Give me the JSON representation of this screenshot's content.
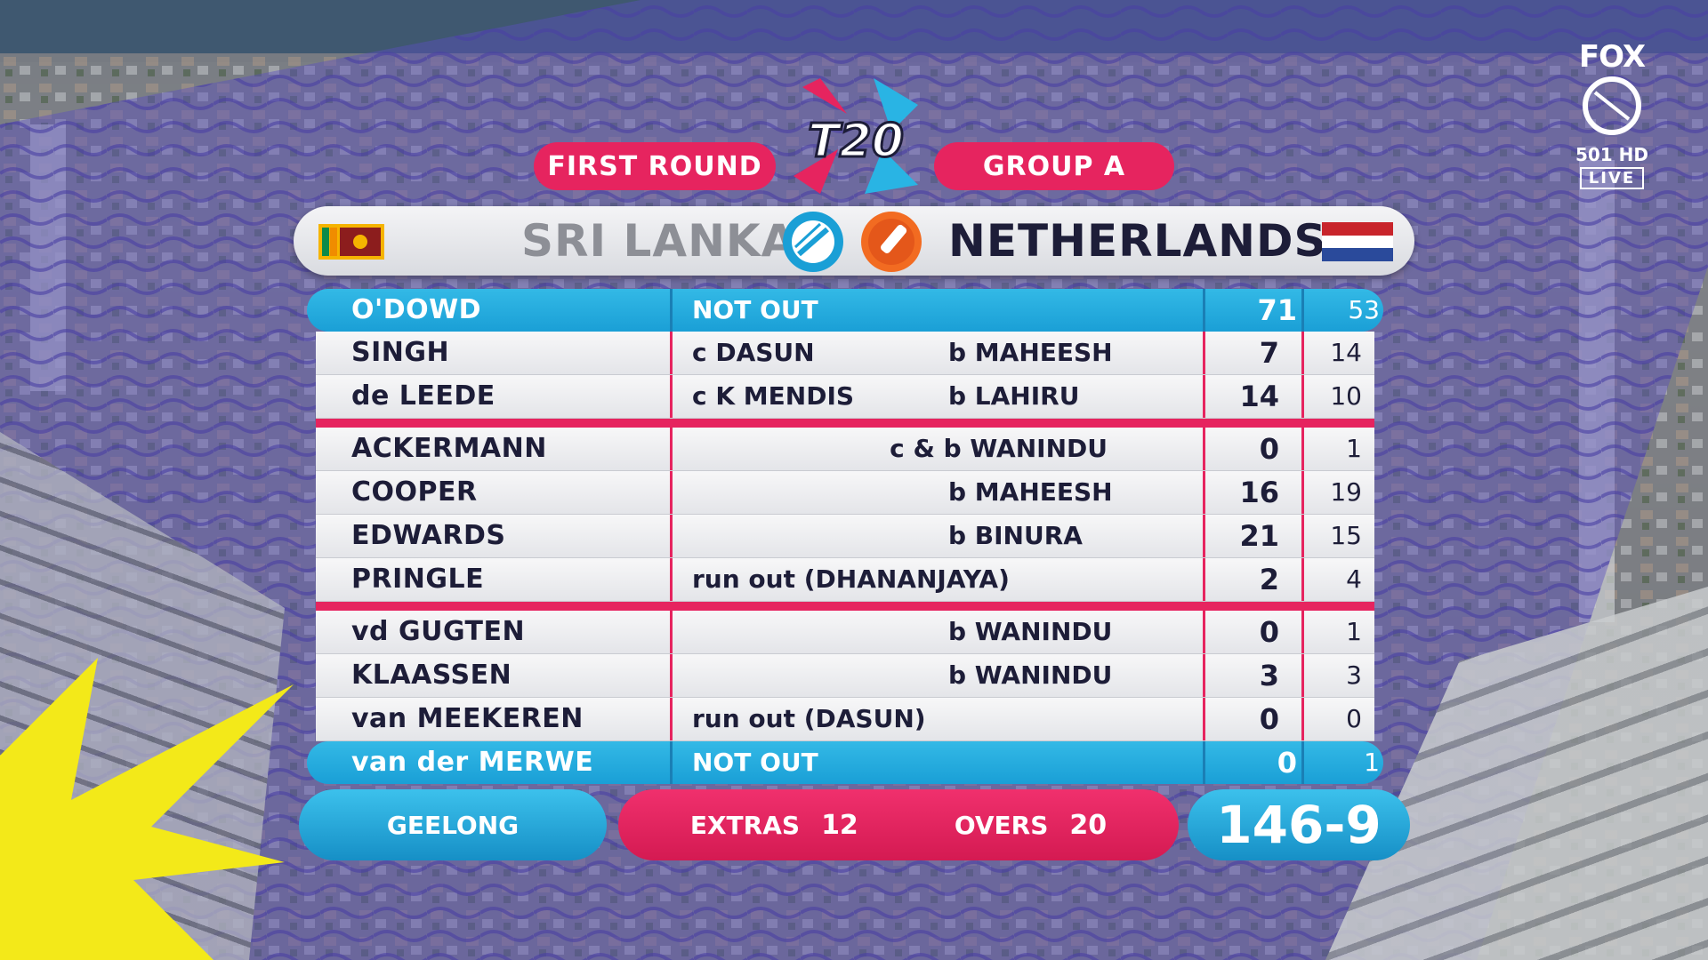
{
  "header": {
    "round": "FIRST ROUND",
    "group": "GROUP A",
    "tournament_logo": "T20"
  },
  "teams": {
    "left": {
      "name": "SRI LANKA",
      "flag": "sri-lanka-flag-icon"
    },
    "right": {
      "name": "NETHERLANDS",
      "flag": "netherlands-flag-icon"
    }
  },
  "batting": [
    {
      "name": "O'DOWD",
      "how": "NOT OUT",
      "bowler": "",
      "runs": "71",
      "balls": "53",
      "highlight": true
    },
    {
      "name": "SINGH",
      "how": "c DASUN",
      "bowler": "b MAHEESH",
      "runs": "7",
      "balls": "14"
    },
    {
      "name": "de LEEDE",
      "how": "c K MENDIS",
      "bowler": "b LAHIRU",
      "runs": "14",
      "balls": "10"
    },
    {
      "name": "ACKERMANN",
      "how": "",
      "bowler": "c & b WANINDU",
      "runs": "0",
      "balls": "1"
    },
    {
      "name": "COOPER",
      "how": "",
      "bowler": "b MAHEESH",
      "runs": "16",
      "balls": "19"
    },
    {
      "name": "EDWARDS",
      "how": "",
      "bowler": "b BINURA",
      "runs": "21",
      "balls": "15"
    },
    {
      "name": "PRINGLE",
      "how": "run out (DHANANJAYA)",
      "bowler": "",
      "runs": "2",
      "balls": "4"
    },
    {
      "name": "vd GUGTEN",
      "how": "",
      "bowler": "b WANINDU",
      "runs": "0",
      "balls": "1"
    },
    {
      "name": "KLAASSEN",
      "how": "",
      "bowler": "b WANINDU",
      "runs": "3",
      "balls": "3"
    },
    {
      "name": "van MEEKEREN",
      "how": "run out (DASUN)",
      "bowler": "",
      "runs": "0",
      "balls": "0"
    },
    {
      "name": "van der MERWE",
      "how": "NOT OUT",
      "bowler": "",
      "runs": "0",
      "balls": "1",
      "highlight": true
    }
  ],
  "footer": {
    "venue": "GEELONG",
    "extras_label": "EXTRAS",
    "extras": "12",
    "overs_label": "OVERS",
    "overs": "20",
    "total": "146-9"
  },
  "broadcaster": {
    "brand": "FOX",
    "channel": "501 HD",
    "live": "LIVE"
  },
  "colors": {
    "accent_pink": "#e6245f",
    "accent_blue": "#1a9fd6",
    "text_dark": "#1d1d38"
  }
}
